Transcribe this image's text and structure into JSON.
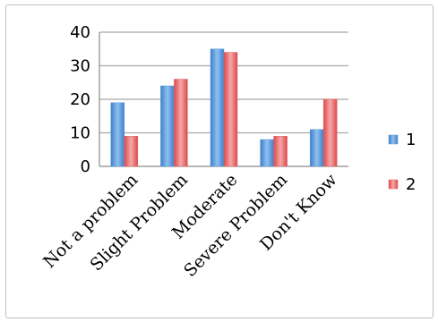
{
  "chart_data": {
    "type": "bar",
    "categories": [
      "Not a problem",
      "Slight Problem",
      "Moderate",
      "Severe Problem",
      "Don't Know"
    ],
    "series": [
      {
        "name": "1",
        "values": [
          19,
          24,
          35,
          8,
          11
        ],
        "color": "#5b9bd5"
      },
      {
        "name": "2",
        "values": [
          9,
          26,
          34,
          9,
          20
        ],
        "color": "#e8686a"
      }
    ],
    "ylim": [
      0,
      40
    ],
    "yticks": [
      "0",
      "10",
      "20",
      "30",
      "40"
    ],
    "grid": true,
    "legend": "right"
  }
}
